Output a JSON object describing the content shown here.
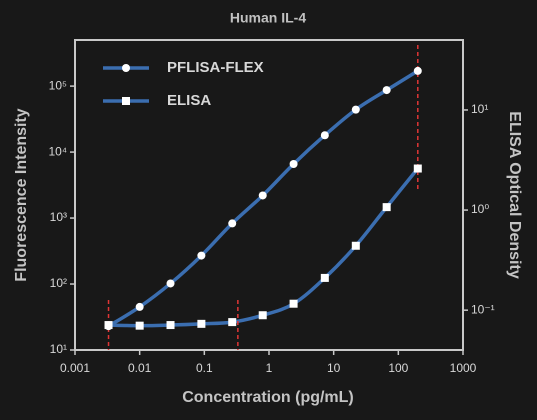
{
  "chart_data": {
    "type": "line",
    "title": "Human IL-4",
    "x_label": "Concentration (pg/mL)",
    "y_label": "Fluorescence Intensity",
    "y2_label": "ELISA Optical Density",
    "x_scale": "log",
    "y_scale": "log",
    "y2_scale": "log",
    "x": [
      0.0033,
      0.01,
      0.03,
      0.09,
      0.27,
      0.8,
      2.4,
      7.3,
      22,
      66,
      200
    ],
    "series": [
      {
        "name": "PFLISA-FLEX",
        "color": "#3b6eb0",
        "marker": "circle",
        "marker_color": "#ffffff",
        "values": [
          23,
          45,
          102,
          270,
          830,
          2200,
          6600,
          18000,
          44000,
          87000,
          170000
        ]
      },
      {
        "name": "ELISA",
        "color": "#3b6eb0",
        "marker": "square",
        "marker_color": "#ffffff",
        "axis": "y2",
        "values": [
          0.071,
          0.07,
          0.071,
          0.073,
          0.076,
          0.089,
          0.116,
          0.21,
          0.44,
          1.07,
          2.6
        ]
      }
    ],
    "xlim": [
      0.001,
      1000
    ],
    "xticks": [
      0.001,
      0.01,
      0.1,
      1,
      10,
      100,
      1000
    ],
    "ylim": [
      10,
      500000
    ],
    "yticks": [
      {
        "value": 10,
        "label": "10¹"
      },
      {
        "value": 100,
        "label": "10²"
      },
      {
        "value": 1000,
        "label": "10³"
      },
      {
        "value": 10000,
        "label": "10⁴"
      },
      {
        "value": 100000,
        "label": "10⁵"
      }
    ],
    "y2lim": [
      0.04,
      50
    ],
    "y2ticks": [
      {
        "value": 0.1,
        "label": "10⁻¹"
      },
      {
        "value": 1,
        "label": "10⁰"
      },
      {
        "value": 10,
        "label": "10¹"
      }
    ],
    "reference_lines": {
      "color": "#e03535",
      "x": [
        0.0033,
        0.33,
        200
      ]
    },
    "legend": "upper left",
    "grid": false
  }
}
